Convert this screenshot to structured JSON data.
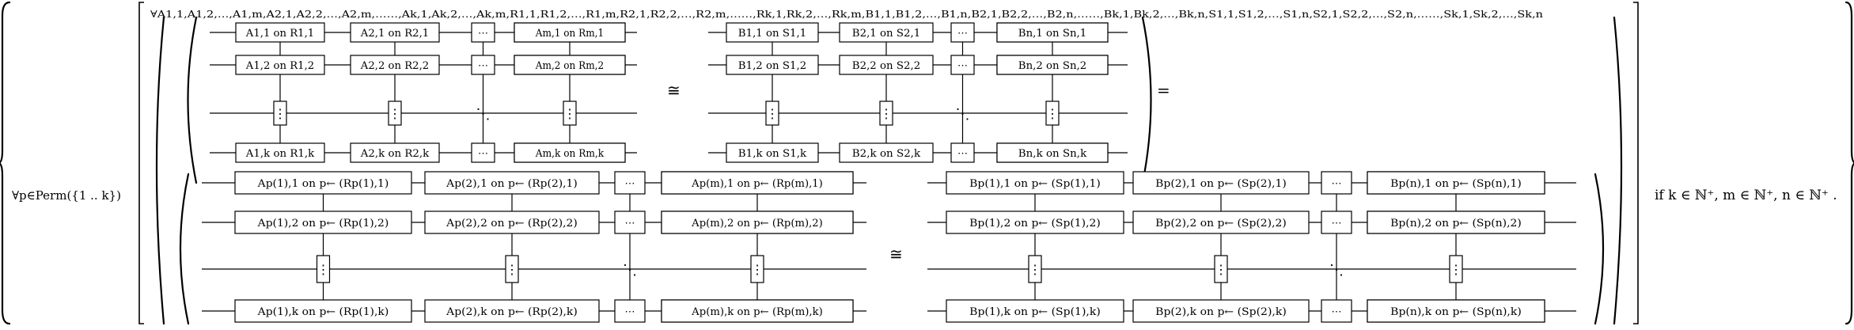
{
  "forall_perm": "∀p∈Perm({1 .. k})",
  "forall_vars": "∀A1,1,A1,2,…,A1,m,A2,1,A2,2,…,A2,m,……,Ak,1,Ak,2,…,Ak,m,R1,1,R1,2,…,R1,m,R2,1,R2,2,…,R2,m,……,Rk,1,Rk,2,…,Rk,m,B1,1,B1,2,…,B1,n,B2,1,B2,2,…,B2,n,……,Bk,1,Bk,2,…,Bk,n,S1,1,S1,2,…,S1,n,S2,1,S2,2,…,S2,n,……,Sk,1,Sk,2,…,Sk,n",
  "iso": "≅",
  "equals": "=",
  "condition": "if k ∈ ℕ⁺, m ∈ ℕ⁺, n ∈ ℕ⁺ .",
  "ellipsis_h": "⋯",
  "ellipsis_v": "⋮",
  "ellipsis_d": "⋱",
  "top_left": [
    [
      "A1,1 on R1,1",
      "A2,1 on R2,1",
      "Am,1 on Rm,1"
    ],
    [
      "A1,2 on R1,2",
      "A2,2 on R2,2",
      "Am,2 on Rm,2"
    ],
    [
      "A1,k on R1,k",
      "A2,k on R2,k",
      "Am,k on Rm,k"
    ]
  ],
  "top_right": [
    [
      "B1,1 on S1,1",
      "B2,1 on S2,1",
      "Bn,1 on Sn,1"
    ],
    [
      "B1,2 on S1,2",
      "B2,2 on S2,2",
      "Bn,2 on Sn,2"
    ],
    [
      "B1,k on S1,k",
      "B2,k on S2,k",
      "Bn,k on Sn,k"
    ]
  ],
  "bottom_left": [
    [
      "Ap(1),1 on p← (Rp(1),1)",
      "Ap(2),1 on p← (Rp(2),1)",
      "Ap(m),1 on p← (Rp(m),1)"
    ],
    [
      "Ap(1),2 on p← (Rp(1),2)",
      "Ap(2),2 on p← (Rp(2),2)",
      "Ap(m),2 on p← (Rp(m),2)"
    ],
    [
      "Ap(1),k on p← (Rp(1),k)",
      "Ap(2),k on p← (Rp(2),k)",
      "Ap(m),k on p← (Rp(m),k)"
    ]
  ],
  "bottom_right": [
    [
      "Bp(1),1 on p← (Sp(1),1)",
      "Bp(2),1 on p← (Sp(2),1)",
      "Bp(n),1 on p← (Sp(n),1)"
    ],
    [
      "Bp(1),2 on p← (Sp(1),2)",
      "Bp(2),2 on p← (Sp(2),2)",
      "Bp(n),2 on p← (Sp(n),2)"
    ],
    [
      "Bp(1),k on p← (Sp(1),k)",
      "Bp(2),k on p← (Sp(2),k)",
      "Bp(n),k on p← (Sp(n),k)"
    ]
  ]
}
